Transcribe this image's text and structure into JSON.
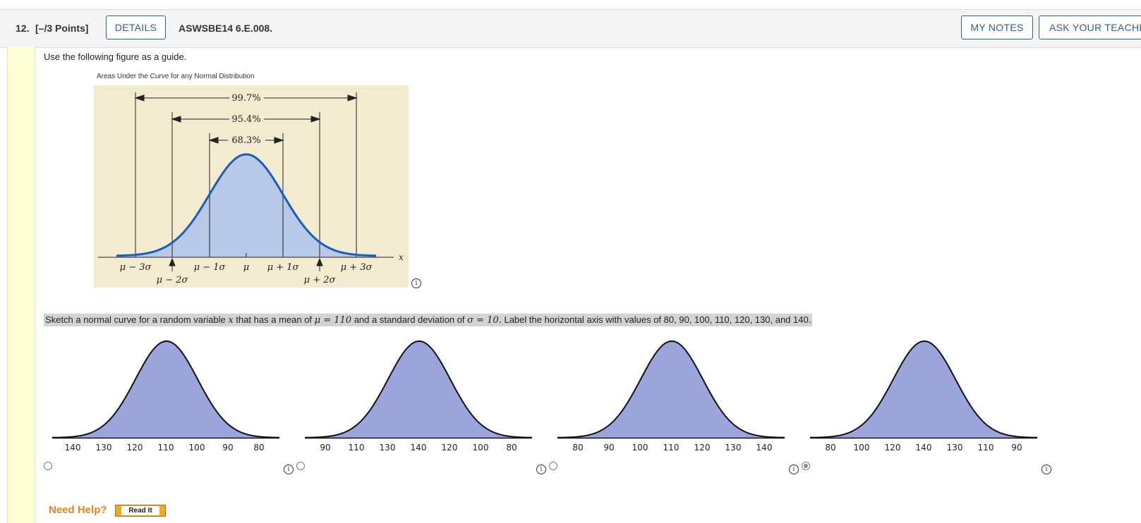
{
  "header": {
    "question_number": "12.",
    "points": "[–/3 Points]",
    "details_label": "DETAILS",
    "code": "ASWSBE14 6.E.008.",
    "my_notes_label": "MY NOTES",
    "ask_teacher_label": "ASK YOUR TEACHER"
  },
  "intro": "Use the following figure as a guide.",
  "figure": {
    "title": "Areas Under the Curve for any Normal Distribution",
    "pct_997": "99.7%",
    "pct_954": "95.4%",
    "pct_683": "68.3%",
    "labels_top": [
      "μ − 3σ",
      "μ − 1σ",
      "μ",
      "μ + 1σ",
      "μ + 3σ"
    ],
    "labels_bottom": [
      "μ − 2σ",
      "μ + 2σ"
    ],
    "axis_var": "x",
    "colors": {
      "bg": "#f3ebcf",
      "fill": "#b7c8e9",
      "curve": "#1a5fb4"
    }
  },
  "question": {
    "part1": "Sketch a normal curve for a random variable ",
    "var": "x",
    "part2": " that has a mean of ",
    "mu": "μ = 110",
    "part3": " and a standard deviation of ",
    "sigma": "σ = 10.",
    "part4": " Label the horizontal axis with values of 80, 90, 100, 110, 120, 130, and 140."
  },
  "options": [
    {
      "ticks": [
        "140",
        "130",
        "120",
        "110",
        "100",
        "90",
        "80"
      ],
      "selected": false
    },
    {
      "ticks": [
        "90",
        "110",
        "130",
        "140",
        "120",
        "100",
        "80"
      ],
      "selected": false
    },
    {
      "ticks": [
        "80",
        "90",
        "100",
        "110",
        "120",
        "130",
        "140"
      ],
      "selected": false
    },
    {
      "ticks": [
        "80",
        "100",
        "120",
        "140",
        "130",
        "110",
        "90"
      ],
      "selected": true
    }
  ],
  "option_fill_color": "#9ba5dc",
  "help": {
    "need_help": "Need Help?",
    "read_it": "Read It"
  }
}
